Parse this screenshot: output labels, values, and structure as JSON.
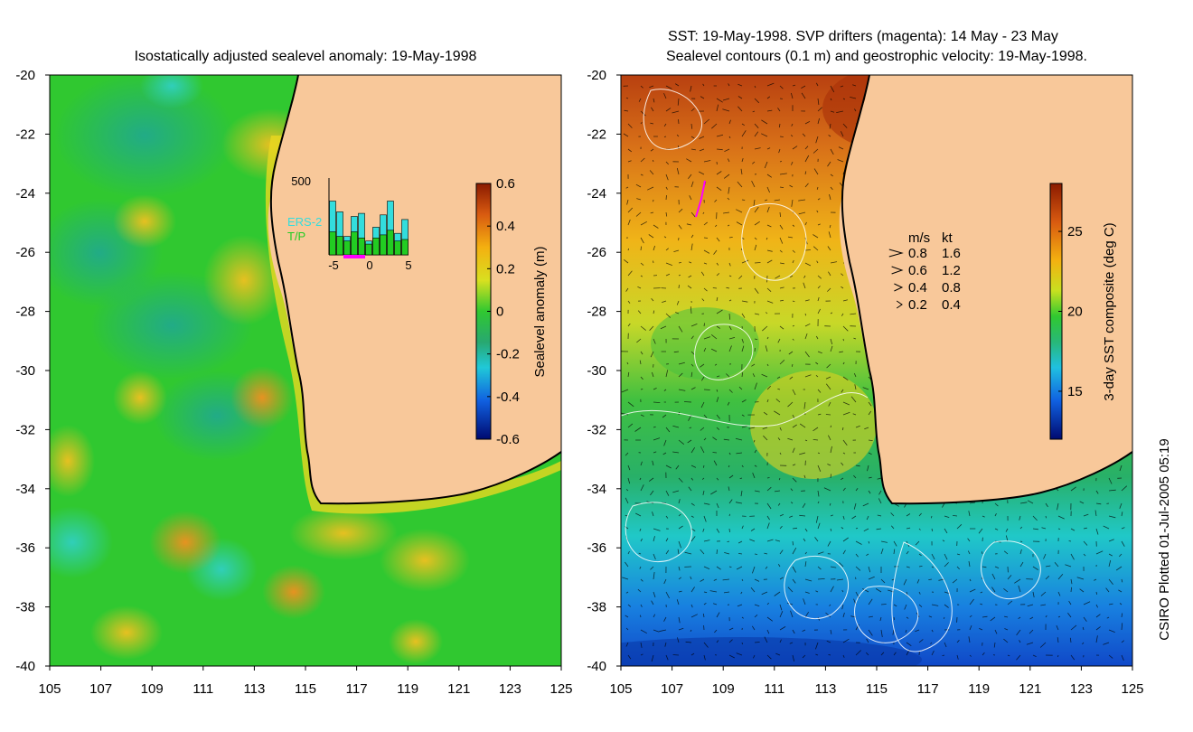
{
  "left_panel": {
    "title": "Isostatically adjusted sealevel anomaly: 19-May-1998",
    "colorbar": {
      "label": "Sealevel anomaly (m)",
      "ticks": [
        "0.6",
        "0.4",
        "0.2",
        "0",
        "-0.2",
        "-0.4",
        "-0.6"
      ],
      "values": [
        0.6,
        0.4,
        0.2,
        0,
        -0.2,
        -0.4,
        -0.6
      ],
      "range": [
        -0.6,
        0.6
      ]
    },
    "inset": {
      "ymax_label": "500",
      "legend": [
        "ERS-2",
        "T/P"
      ],
      "legend_colors": [
        "#33dddd",
        "#22cc22"
      ],
      "xticks": [
        "-5",
        "0",
        "5"
      ],
      "days": [
        -5,
        -4,
        -3,
        -2,
        -1,
        0,
        1,
        2,
        3,
        4,
        5
      ],
      "ers2": [
        350,
        280,
        120,
        250,
        270,
        90,
        180,
        260,
        350,
        140,
        230
      ],
      "tp": [
        150,
        120,
        90,
        150,
        110,
        70,
        110,
        130,
        160,
        90,
        100
      ]
    }
  },
  "right_panel": {
    "title_line1": "SST: 19-May-1998. SVP drifters (magenta): 14 May - 23 May",
    "title_line2": "Sealevel contours (0.1 m) and geostrophic velocity: 19-May-1998.",
    "colorbar": {
      "label": "3-day SST composite (deg C)",
      "ticks": [
        "25",
        "20",
        "15"
      ],
      "values": [
        25,
        20,
        15
      ],
      "range": [
        12,
        28
      ]
    },
    "velocity_legend": {
      "header_ms": "m/s",
      "header_kt": "kt",
      "rows": [
        {
          "ms": "0.8",
          "kt": "1.6"
        },
        {
          "ms": "0.6",
          "kt": "1.2"
        },
        {
          "ms": "0.4",
          "kt": "0.8"
        },
        {
          "ms": "0.2",
          "kt": "0.4"
        }
      ]
    }
  },
  "axes": {
    "lat_ticks": [
      "-20",
      "-22",
      "-24",
      "-26",
      "-28",
      "-30",
      "-32",
      "-34",
      "-36",
      "-38",
      "-40"
    ],
    "lat_values": [
      -20,
      -22,
      -24,
      -26,
      -28,
      -30,
      -32,
      -34,
      -36,
      -38,
      -40
    ],
    "lon_ticks": [
      "105",
      "107",
      "109",
      "111",
      "113",
      "115",
      "117",
      "119",
      "121",
      "123",
      "125"
    ],
    "lon_values": [
      105,
      107,
      109,
      111,
      113,
      115,
      117,
      119,
      121,
      123,
      125
    ]
  },
  "credit": "CSIRO Plotted 01-Jul-2005 05:19",
  "colors": {
    "land": "#f8c89a",
    "coast": "#000000",
    "anomaly_green": "#22c822",
    "sst_warm": "#c84a10",
    "sst_cool": "#1a60e0"
  }
}
